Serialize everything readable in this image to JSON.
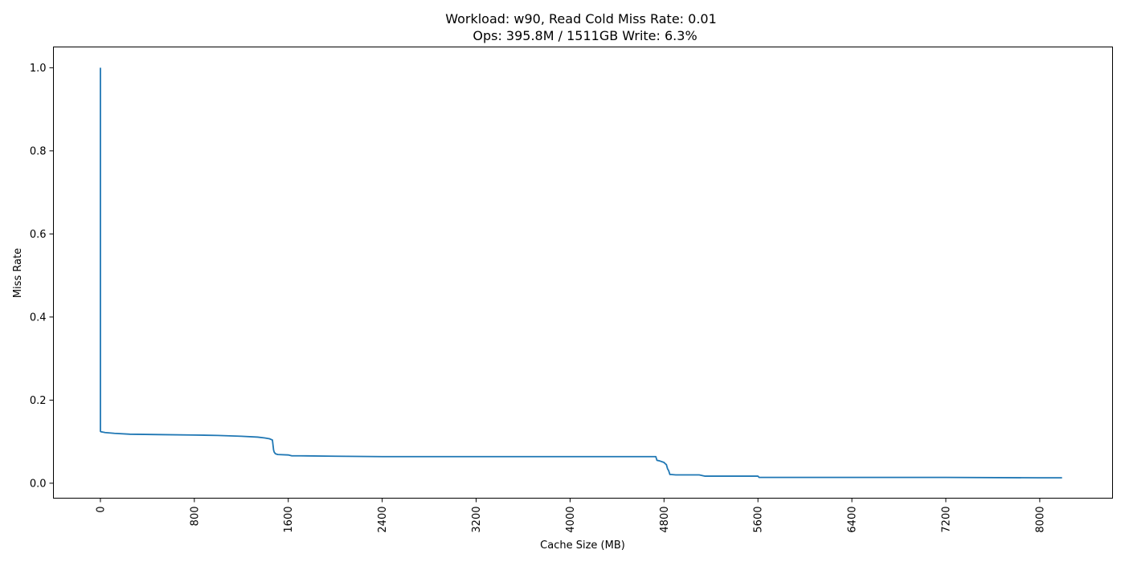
{
  "chart_data": {
    "type": "line",
    "title": [
      "Workload: w90, Read Cold Miss Rate: 0.01",
      "Ops: 395.8M / 1511GB Write: 6.3%"
    ],
    "xlabel": "Cache Size (MB)",
    "ylabel": "Miss Rate",
    "xlim": [
      -400,
      8620
    ],
    "ylim": [
      -0.036,
      1.05
    ],
    "xticks": [
      0,
      800,
      1600,
      2400,
      3200,
      4000,
      4800,
      5600,
      6400,
      7200,
      8000
    ],
    "yticks": [
      0.0,
      0.2,
      0.4,
      0.6,
      0.8,
      1.0
    ],
    "ytick_labels": [
      "0.0",
      "0.2",
      "0.4",
      "0.6",
      "0.8",
      "1.0"
    ],
    "grid": false,
    "color": "#1f77b4",
    "series": [
      {
        "x": [
          0,
          0,
          4,
          40,
          120,
          250,
          500,
          800,
          1000,
          1200,
          1340,
          1400,
          1440,
          1465,
          1475,
          1480,
          1490,
          1510,
          1600,
          1630,
          1700,
          2000,
          2400,
          3200,
          4000,
          4730,
          4740,
          4760,
          4800,
          4810,
          4820,
          4830,
          4840,
          4850,
          4860,
          4900,
          5000,
          5100,
          5150,
          5160,
          5600,
          5610,
          5620,
          6000,
          6400,
          7200,
          8000,
          8190
        ],
        "y": [
          1.0,
          0.125,
          0.124,
          0.122,
          0.12,
          0.118,
          0.117,
          0.116,
          0.115,
          0.113,
          0.111,
          0.109,
          0.107,
          0.104,
          0.08,
          0.075,
          0.071,
          0.069,
          0.068,
          0.066,
          0.066,
          0.065,
          0.064,
          0.064,
          0.064,
          0.064,
          0.055,
          0.054,
          0.05,
          0.047,
          0.045,
          0.035,
          0.03,
          0.021,
          0.021,
          0.02,
          0.02,
          0.02,
          0.017,
          0.017,
          0.017,
          0.014,
          0.014,
          0.014,
          0.014,
          0.014,
          0.013,
          0.013
        ]
      }
    ]
  }
}
